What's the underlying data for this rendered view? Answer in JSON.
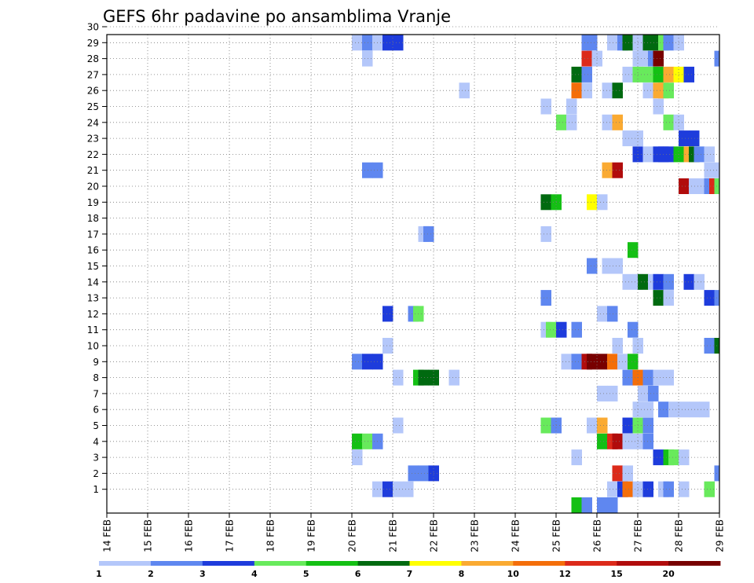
{
  "chart_data": {
    "type": "heatmap",
    "title": "GEFS 6hr padavine po ansamblima Vranje",
    "xlabel": "",
    "ylabel": "",
    "x_tick_labels": [
      "14 FEB",
      "15 FEB",
      "16 FEB",
      "17 FEB",
      "18 FEB",
      "19 FEB",
      "20 FEB",
      "21 FEB",
      "22 FEB",
      "23 FEB",
      "24 FEB",
      "25 FEB",
      "26 FEB",
      "27 FEB",
      "28 FEB",
      "29 FEB"
    ],
    "y_tick_labels": [
      "1",
      "2",
      "3",
      "4",
      "5",
      "6",
      "7",
      "8",
      "9",
      "10",
      "11",
      "12",
      "13",
      "14",
      "15",
      "16",
      "17",
      "18",
      "19",
      "20",
      "21",
      "22",
      "23",
      "24",
      "25",
      "26",
      "27",
      "28",
      "29",
      "30"
    ],
    "x_range_days": [
      14,
      29
    ],
    "y_range_members": [
      0,
      30
    ],
    "grid": true,
    "colorbar": {
      "labels": [
        "1",
        "2",
        "3",
        "4",
        "5",
        "6",
        "7",
        "8",
        "10",
        "12",
        "15",
        "20"
      ],
      "colors": [
        "#b4c7fa",
        "#5f87f0",
        "#1e3cdc",
        "#68ea5c",
        "#14c014",
        "#006a10",
        "#ffff00",
        "#faaa32",
        "#f46e0a",
        "#dc2a1a",
        "#b10c0c",
        "#780000"
      ]
    },
    "cells_note": "each cell: [start day (day of February), member, colour class index 0-11]",
    "cells": [
      [
        20.75,
        30,
        0
      ],
      [
        20.875,
        30,
        3
      ],
      [
        21.0,
        30,
        1
      ],
      [
        21.125,
        30,
        1
      ],
      [
        25.625,
        30,
        2
      ],
      [
        27.625,
        30,
        1
      ],
      [
        20.0,
        29,
        0
      ],
      [
        20.25,
        29,
        1
      ],
      [
        20.5,
        29,
        0
      ],
      [
        20.75,
        29,
        2
      ],
      [
        21.0,
        29,
        2
      ],
      [
        25.625,
        29,
        1
      ],
      [
        25.75,
        29,
        1
      ],
      [
        26.25,
        29,
        0
      ],
      [
        26.5,
        29,
        1
      ],
      [
        26.625,
        29,
        5
      ],
      [
        26.875,
        29,
        0
      ],
      [
        27.0,
        29,
        0
      ],
      [
        27.125,
        29,
        5
      ],
      [
        27.375,
        29,
        5
      ],
      [
        27.5,
        29,
        3
      ],
      [
        27.625,
        29,
        1
      ],
      [
        27.875,
        29,
        0
      ],
      [
        20.25,
        28,
        0
      ],
      [
        25.625,
        28,
        9
      ],
      [
        25.875,
        28,
        0
      ],
      [
        26.875,
        28,
        0
      ],
      [
        27.0,
        28,
        0
      ],
      [
        27.25,
        28,
        1
      ],
      [
        27.375,
        28,
        11
      ],
      [
        28.875,
        28,
        1
      ],
      [
        25.375,
        27,
        5
      ],
      [
        25.625,
        27,
        1
      ],
      [
        26.625,
        27,
        0
      ],
      [
        26.875,
        27,
        3
      ],
      [
        27.125,
        27,
        3
      ],
      [
        27.375,
        27,
        4
      ],
      [
        27.625,
        27,
        7
      ],
      [
        27.875,
        27,
        6
      ],
      [
        28.125,
        27,
        2
      ],
      [
        22.625,
        26,
        0
      ],
      [
        25.375,
        26,
        8
      ],
      [
        25.625,
        26,
        0
      ],
      [
        26.125,
        26,
        0
      ],
      [
        26.375,
        26,
        5
      ],
      [
        27.125,
        26,
        0
      ],
      [
        27.375,
        26,
        7
      ],
      [
        27.5,
        26,
        7
      ],
      [
        27.625,
        26,
        3
      ],
      [
        24.625,
        25,
        0
      ],
      [
        25.25,
        25,
        0
      ],
      [
        27.375,
        25,
        0
      ],
      [
        25.0,
        24,
        3
      ],
      [
        25.25,
        24,
        0
      ],
      [
        26.125,
        24,
        0
      ],
      [
        26.375,
        24,
        7
      ],
      [
        27.625,
        24,
        3
      ],
      [
        27.875,
        24,
        0
      ],
      [
        26.625,
        23,
        0
      ],
      [
        26.875,
        23,
        0
      ],
      [
        28.0,
        23,
        2
      ],
      [
        28.25,
        23,
        2
      ],
      [
        26.875,
        22,
        2
      ],
      [
        27.125,
        22,
        0
      ],
      [
        27.375,
        22,
        2
      ],
      [
        27.5,
        22,
        2
      ],
      [
        27.625,
        22,
        2
      ],
      [
        27.875,
        22,
        4
      ],
      [
        28.125,
        22,
        7
      ],
      [
        28.25,
        22,
        5
      ],
      [
        28.375,
        22,
        1
      ],
      [
        28.625,
        22,
        0
      ],
      [
        20.25,
        21,
        1
      ],
      [
        20.5,
        21,
        1
      ],
      [
        26.125,
        21,
        7
      ],
      [
        26.375,
        21,
        10
      ],
      [
        28.625,
        21,
        0
      ],
      [
        28.875,
        21,
        0
      ],
      [
        28.0,
        20,
        10
      ],
      [
        28.25,
        20,
        0
      ],
      [
        28.5,
        20,
        0
      ],
      [
        28.625,
        20,
        1
      ],
      [
        28.75,
        20,
        9
      ],
      [
        28.875,
        20,
        3
      ],
      [
        24.625,
        19,
        5
      ],
      [
        24.875,
        19,
        4
      ],
      [
        25.75,
        19,
        6
      ],
      [
        26.0,
        19,
        0
      ],
      [
        21.625,
        17,
        0
      ],
      [
        21.75,
        17,
        1
      ],
      [
        24.625,
        17,
        0
      ],
      [
        26.75,
        16,
        4
      ],
      [
        25.75,
        15,
        1
      ],
      [
        26.125,
        15,
        0
      ],
      [
        26.375,
        15,
        0
      ],
      [
        26.625,
        14,
        0
      ],
      [
        26.875,
        14,
        0
      ],
      [
        27.0,
        14,
        5
      ],
      [
        27.25,
        14,
        0
      ],
      [
        27.375,
        14,
        2
      ],
      [
        27.625,
        14,
        1
      ],
      [
        28.125,
        14,
        2
      ],
      [
        28.375,
        14,
        0
      ],
      [
        24.625,
        13,
        1
      ],
      [
        27.375,
        13,
        5
      ],
      [
        27.625,
        13,
        0
      ],
      [
        28.625,
        13,
        2
      ],
      [
        28.875,
        13,
        1
      ],
      [
        20.75,
        12,
        2
      ],
      [
        21.375,
        12,
        1
      ],
      [
        21.5,
        12,
        3
      ],
      [
        26.0,
        12,
        0
      ],
      [
        26.25,
        12,
        1
      ],
      [
        24.625,
        11,
        0
      ],
      [
        24.75,
        11,
        3
      ],
      [
        25.0,
        11,
        2
      ],
      [
        25.375,
        11,
        1
      ],
      [
        26.75,
        11,
        1
      ],
      [
        20.75,
        10,
        0
      ],
      [
        26.375,
        10,
        0
      ],
      [
        26.875,
        10,
        0
      ],
      [
        28.625,
        10,
        1
      ],
      [
        28.875,
        10,
        5
      ],
      [
        20.0,
        9,
        1
      ],
      [
        20.25,
        9,
        2
      ],
      [
        20.5,
        9,
        2
      ],
      [
        25.125,
        9,
        0
      ],
      [
        25.375,
        9,
        1
      ],
      [
        25.625,
        9,
        10
      ],
      [
        25.75,
        9,
        11
      ],
      [
        26.0,
        9,
        11
      ],
      [
        26.25,
        9,
        8
      ],
      [
        26.5,
        9,
        0
      ],
      [
        26.75,
        9,
        4
      ],
      [
        21.0,
        8,
        0
      ],
      [
        21.5,
        8,
        4
      ],
      [
        21.625,
        8,
        5
      ],
      [
        21.875,
        8,
        5
      ],
      [
        22.375,
        8,
        0
      ],
      [
        26.625,
        8,
        1
      ],
      [
        26.875,
        8,
        8
      ],
      [
        27.125,
        8,
        1
      ],
      [
        27.375,
        8,
        0
      ],
      [
        27.625,
        8,
        0
      ],
      [
        26.0,
        7,
        0
      ],
      [
        26.25,
        7,
        0
      ],
      [
        27.0,
        7,
        0
      ],
      [
        27.25,
        7,
        1
      ],
      [
        26.875,
        6,
        0
      ],
      [
        27.125,
        6,
        0
      ],
      [
        27.5,
        6,
        1
      ],
      [
        27.75,
        6,
        0
      ],
      [
        28.0,
        6,
        0
      ],
      [
        28.25,
        6,
        0
      ],
      [
        28.5,
        6,
        0
      ],
      [
        21.0,
        5,
        0
      ],
      [
        24.625,
        5,
        3
      ],
      [
        24.875,
        5,
        1
      ],
      [
        25.75,
        5,
        0
      ],
      [
        26.0,
        5,
        7
      ],
      [
        26.625,
        5,
        2
      ],
      [
        26.875,
        5,
        3
      ],
      [
        27.125,
        5,
        1
      ],
      [
        20.0,
        4,
        4
      ],
      [
        20.25,
        4,
        3
      ],
      [
        20.5,
        4,
        1
      ],
      [
        26.0,
        4,
        4
      ],
      [
        26.25,
        4,
        9
      ],
      [
        26.375,
        4,
        10
      ],
      [
        26.625,
        4,
        0
      ],
      [
        26.875,
        4,
        0
      ],
      [
        27.125,
        4,
        1
      ],
      [
        20.0,
        3,
        0
      ],
      [
        25.375,
        3,
        0
      ],
      [
        27.375,
        3,
        2
      ],
      [
        27.625,
        3,
        4
      ],
      [
        27.75,
        3,
        3
      ],
      [
        28.0,
        3,
        0
      ],
      [
        21.375,
        2,
        1
      ],
      [
        21.625,
        2,
        1
      ],
      [
        21.875,
        2,
        2
      ],
      [
        26.375,
        2,
        9
      ],
      [
        26.625,
        2,
        0
      ],
      [
        28.875,
        2,
        1
      ],
      [
        20.5,
        1,
        0
      ],
      [
        20.75,
        1,
        2
      ],
      [
        21.0,
        1,
        0
      ],
      [
        21.25,
        1,
        0
      ],
      [
        26.25,
        1,
        0
      ],
      [
        26.5,
        1,
        2
      ],
      [
        26.625,
        1,
        8
      ],
      [
        26.875,
        1,
        0
      ],
      [
        27.125,
        1,
        2
      ],
      [
        27.5,
        1,
        0
      ],
      [
        27.625,
        1,
        1
      ],
      [
        28.0,
        1,
        0
      ],
      [
        28.625,
        1,
        3
      ],
      [
        25.375,
        0,
        4
      ],
      [
        25.625,
        0,
        1
      ],
      [
        26.0,
        0,
        1
      ],
      [
        26.25,
        0,
        1
      ]
    ]
  }
}
